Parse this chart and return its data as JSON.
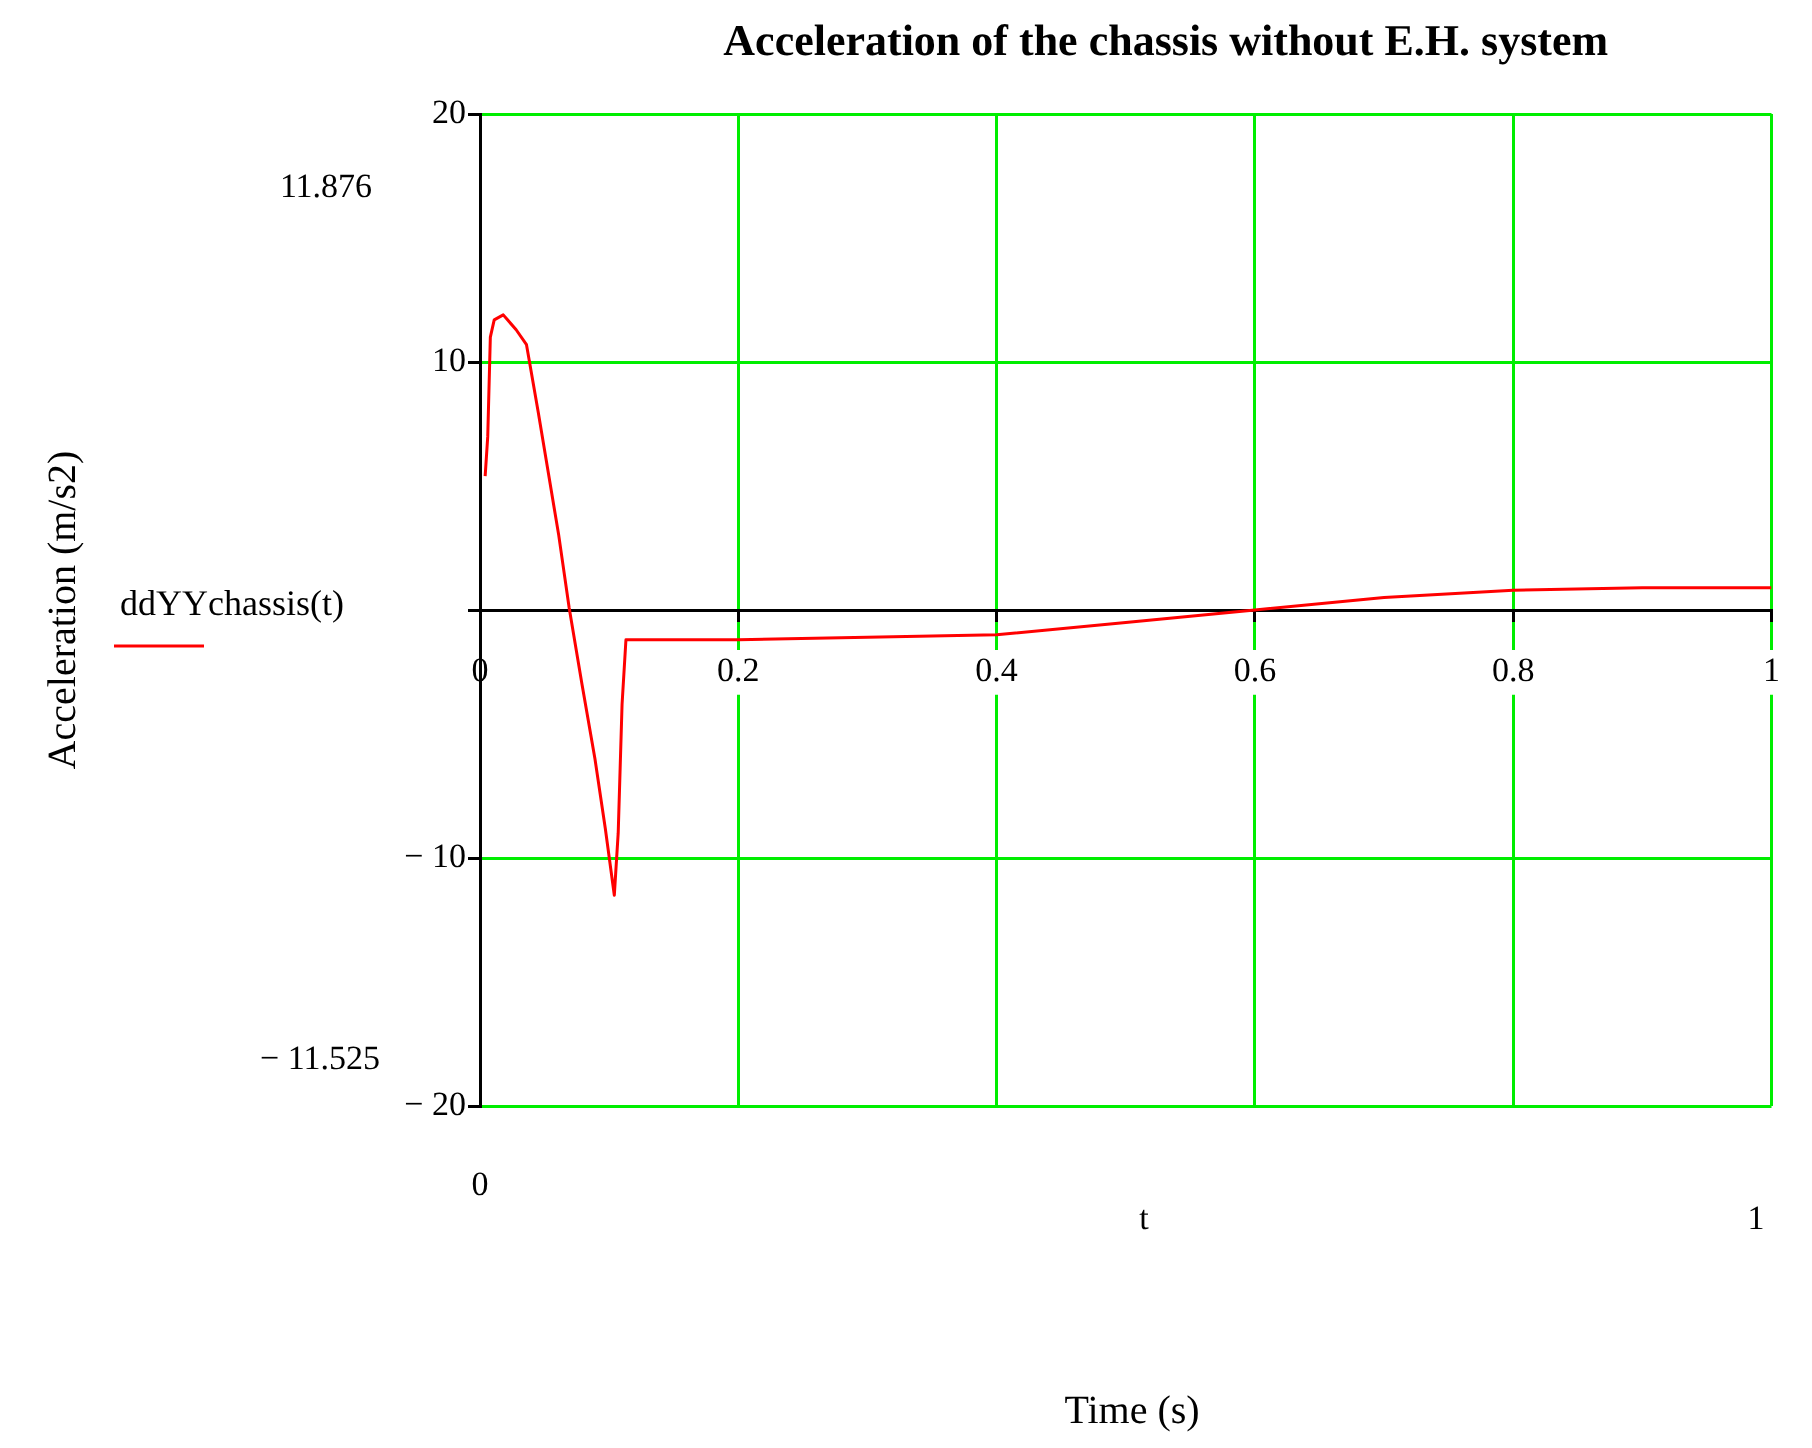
{
  "chart_data": {
    "type": "line",
    "title": "Acceleration of the chassis without E.H. system",
    "xlim": [
      0,
      1
    ],
    "xticks": [
      0,
      0.2,
      0.4,
      0.6,
      0.8,
      1
    ],
    "ylim": [
      -20,
      20
    ],
    "yticks": [
      {
        "value": -20,
        "label": "− 20"
      },
      {
        "value": -10,
        "label": "− 10"
      },
      {
        "value": 0,
        "label": null
      },
      10,
      20
    ],
    "grid": true,
    "legend": "left",
    "marker": "none",
    "line_style": "solid",
    "annotations": [
      "11.876",
      "− 11.525",
      "0",
      "t",
      "1",
      "Time (s)",
      "Acceleration (m/s2)"
    ],
    "series": [
      {
        "name": "ddYYchassis(t)",
        "color": "#ff0000",
        "x": [
          0.004,
          0.006,
          0.008,
          0.011,
          0.018,
          0.028,
          0.036,
          0.038,
          0.045,
          0.053,
          0.061,
          0.069,
          0.079,
          0.089,
          0.097,
          0.104,
          0.107,
          0.11,
          0.113,
          0.12,
          0.2,
          0.3,
          0.4,
          0.5,
          0.6,
          0.7,
          0.8,
          0.9,
          1
        ],
        "values": [
          5.4,
          7.0,
          11.0,
          11.7,
          11.9,
          11.3,
          10.7,
          10.1,
          8.0,
          5.5,
          3.0,
          0.1,
          -3.0,
          -6.0,
          -8.8,
          -11.5,
          -9.0,
          -3.8,
          -1.2,
          -1.2,
          -1.2,
          -1.1,
          -1.0,
          -0.5,
          0.0,
          0.5,
          0.8,
          0.9,
          0.9
        ]
      }
    ]
  }
}
